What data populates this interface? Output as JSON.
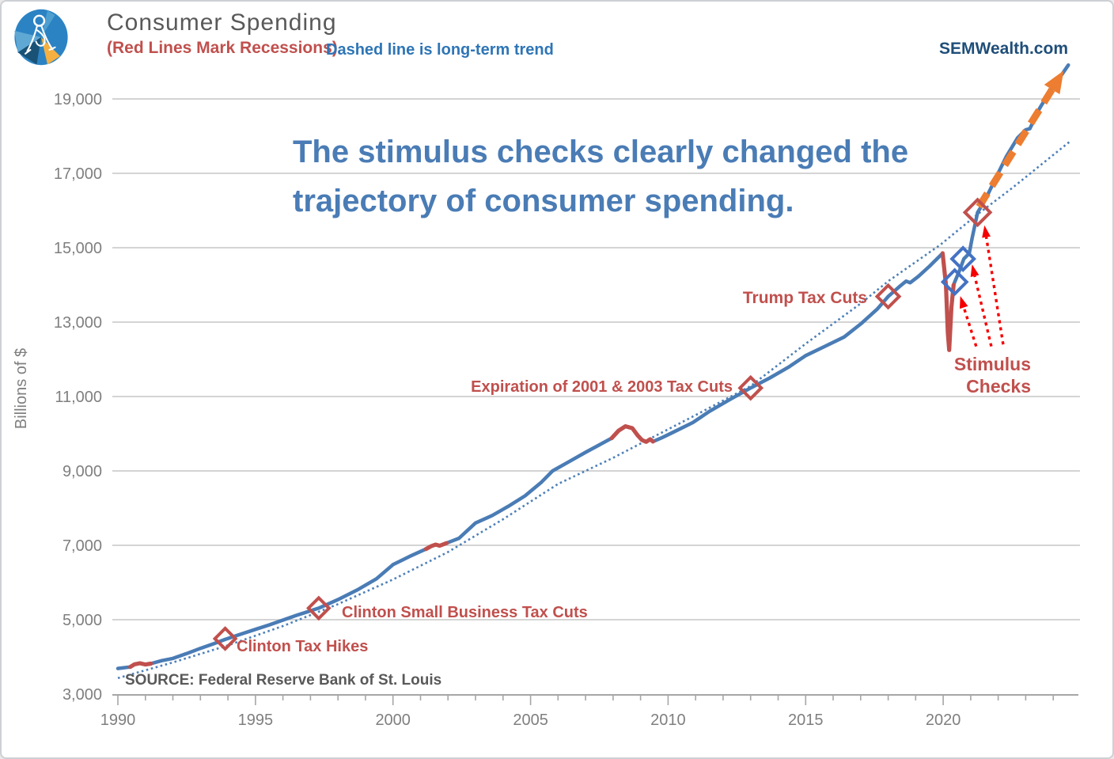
{
  "header": {
    "title": "Consumer Spending",
    "subtitle_red": "(Red Lines Mark Recessions)",
    "subtitle_blue": "Dashed line is long-term trend",
    "brand": "SEMWealth.com",
    "logo_icon": "sem-compass-logo"
  },
  "message": {
    "line1": "The stimulus checks clearly changed the",
    "line2": "trajectory of consumer spending."
  },
  "source": "SOURCE:  Federal Reserve Bank of St. Louis",
  "colors": {
    "line_blue": "#4a7cb5",
    "trend_blue": "#4e80b8",
    "recession_red": "#c0504d",
    "annotation_red": "#c0504d",
    "arrow_bright_red": "#f50000",
    "projection_orange": "#ed7d31",
    "brand_navy": "#1f4e79",
    "title_gray": "#595959",
    "axis_gray": "#7f7f7f",
    "gridline_gray": "#c6c6c6"
  },
  "chart_data": {
    "type": "line",
    "title": "Consumer Spending",
    "xlabel": "",
    "ylabel": "Billions of $",
    "x_range": [
      1990,
      2024.8
    ],
    "ylim": [
      3000,
      19900
    ],
    "x_ticks": [
      1990,
      1995,
      2000,
      2005,
      2010,
      2015,
      2020
    ],
    "y_ticks": [
      3000,
      5000,
      7000,
      9000,
      11000,
      13000,
      15000,
      17000,
      19000
    ],
    "grid": "horizontal",
    "legend": "none",
    "series": [
      {
        "name": "Consumer Spending",
        "style": "solid",
        "color": "#4a7cb5",
        "points": [
          [
            1990.0,
            3690
          ],
          [
            1990.45,
            3730
          ],
          [
            1990.6,
            3800
          ],
          [
            1990.8,
            3830
          ],
          [
            1991.0,
            3795
          ],
          [
            1991.2,
            3820
          ],
          [
            1991.6,
            3900
          ],
          [
            1992.0,
            3960
          ],
          [
            1992.5,
            4090
          ],
          [
            1993.0,
            4230
          ],
          [
            1993.5,
            4360
          ],
          [
            1993.9,
            4470
          ],
          [
            1994.5,
            4620
          ],
          [
            1995.0,
            4740
          ],
          [
            1995.5,
            4860
          ],
          [
            1996.0,
            4990
          ],
          [
            1996.5,
            5120
          ],
          [
            1997.3,
            5310
          ],
          [
            1998.0,
            5540
          ],
          [
            1998.7,
            5800
          ],
          [
            1999.4,
            6100
          ],
          [
            2000.0,
            6480
          ],
          [
            2000.6,
            6700
          ],
          [
            2001.2,
            6900
          ],
          [
            2001.4,
            6980
          ],
          [
            2001.55,
            7020
          ],
          [
            2001.7,
            6990
          ],
          [
            2001.95,
            7060
          ],
          [
            2002.4,
            7190
          ],
          [
            2003.0,
            7600
          ],
          [
            2003.6,
            7800
          ],
          [
            2004.2,
            8050
          ],
          [
            2004.8,
            8330
          ],
          [
            2005.4,
            8700
          ],
          [
            2005.8,
            9000
          ],
          [
            2006.4,
            9250
          ],
          [
            2007.0,
            9500
          ],
          [
            2007.5,
            9700
          ],
          [
            2007.95,
            9880
          ],
          [
            2008.2,
            10080
          ],
          [
            2008.45,
            10200
          ],
          [
            2008.7,
            10150
          ],
          [
            2008.9,
            9950
          ],
          [
            2009.05,
            9830
          ],
          [
            2009.2,
            9780
          ],
          [
            2009.35,
            9850
          ],
          [
            2009.45,
            9790
          ],
          [
            2009.8,
            9900
          ],
          [
            2010.3,
            10080
          ],
          [
            2010.9,
            10300
          ],
          [
            2011.5,
            10600
          ],
          [
            2012.2,
            10900
          ],
          [
            2013.0,
            11230
          ],
          [
            2013.7,
            11500
          ],
          [
            2014.4,
            11800
          ],
          [
            2015.0,
            12100
          ],
          [
            2015.7,
            12350
          ],
          [
            2016.4,
            12600
          ],
          [
            2017.0,
            12950
          ],
          [
            2017.6,
            13350
          ],
          [
            2018.0,
            13690
          ],
          [
            2018.4,
            13950
          ],
          [
            2018.65,
            14100
          ],
          [
            2018.8,
            14060
          ],
          [
            2019.1,
            14230
          ],
          [
            2019.5,
            14500
          ],
          [
            2019.98,
            14850
          ],
          [
            2020.1,
            14000
          ],
          [
            2020.17,
            12700
          ],
          [
            2020.22,
            12250
          ],
          [
            2020.3,
            13400
          ],
          [
            2020.38,
            14000
          ],
          [
            2020.42,
            14080
          ],
          [
            2020.6,
            14400
          ],
          [
            2020.75,
            14700
          ],
          [
            2020.95,
            14850
          ],
          [
            2021.05,
            15250
          ],
          [
            2021.25,
            15950
          ],
          [
            2021.5,
            16250
          ],
          [
            2021.95,
            16930
          ],
          [
            2022.3,
            17460
          ],
          [
            2022.7,
            17950
          ],
          [
            2023.0,
            18170
          ],
          [
            2023.15,
            18200
          ],
          [
            2023.5,
            18740
          ],
          [
            2023.9,
            19230
          ],
          [
            2024.25,
            19590
          ],
          [
            2024.55,
            19910
          ]
        ]
      },
      {
        "name": "Long-term trend",
        "style": "dotted",
        "color": "#4e80b8",
        "points": [
          [
            1990.0,
            3430
          ],
          [
            1992,
            3850
          ],
          [
            1994,
            4310
          ],
          [
            1996,
            4830
          ],
          [
            1998,
            5420
          ],
          [
            2000,
            6080
          ],
          [
            2002,
            6820
          ],
          [
            2004,
            7700
          ],
          [
            2006,
            8650
          ],
          [
            2008,
            9350
          ],
          [
            2009.3,
            9850
          ],
          [
            2011,
            10500
          ],
          [
            2013,
            11280
          ],
          [
            2015,
            12420
          ],
          [
            2017,
            13500
          ],
          [
            2018,
            14100
          ],
          [
            2019.9,
            15080
          ],
          [
            2021.25,
            15900
          ],
          [
            2022.5,
            16600
          ],
          [
            2024.6,
            17850
          ]
        ]
      }
    ],
    "recessions": {
      "color": "#c0504d",
      "year_ranges": [
        [
          1990.45,
          1991.2
        ],
        [
          2001.2,
          2001.95
        ],
        [
          2007.95,
          2009.45
        ],
        [
          2019.98,
          2020.38
        ]
      ]
    },
    "events": [
      {
        "label": "Clinton Tax Hikes",
        "year": 1993.9,
        "value": 4490,
        "marker": "diamond",
        "marker_color": "#c0504d"
      },
      {
        "label": "Clinton Small Business Tax Cuts",
        "year": 1997.3,
        "value": 5310,
        "marker": "diamond",
        "marker_color": "#c0504d"
      },
      {
        "label": "Expiration of 2001 & 2003 Tax Cuts",
        "year": 2013.0,
        "value": 11230,
        "marker": "diamond",
        "marker_color": "#c0504d"
      },
      {
        "label": "Trump Tax Cuts",
        "year": 2018.0,
        "value": 13690,
        "marker": "diamond",
        "marker_color": "#c0504d"
      }
    ],
    "stimulus": {
      "label_line1": "Stimulus",
      "label_line2": "Checks",
      "arrow_color": "#f50000",
      "markers": [
        {
          "year": 2020.42,
          "value": 14080,
          "marker": "diamond",
          "marker_color": "#4472c4"
        },
        {
          "year": 2020.72,
          "value": 14700,
          "marker": "diamond",
          "marker_color": "#4472c4"
        },
        {
          "year": 2021.25,
          "value": 15950,
          "marker": "diamond",
          "marker_color": "#c0504d"
        }
      ],
      "arrows": [
        {
          "from": [
            2021.2,
            12350
          ],
          "to": [
            2020.62,
            13700
          ]
        },
        {
          "from": [
            2021.75,
            12350
          ],
          "to": [
            2021.05,
            14550
          ]
        },
        {
          "from": [
            2022.18,
            12400
          ],
          "to": [
            2021.5,
            15600
          ]
        }
      ]
    },
    "projection_arrow": {
      "color": "#ed7d31",
      "style": "dashed",
      "from": [
        2021.3,
        16100
      ],
      "to": [
        2024.38,
        19760
      ]
    }
  }
}
